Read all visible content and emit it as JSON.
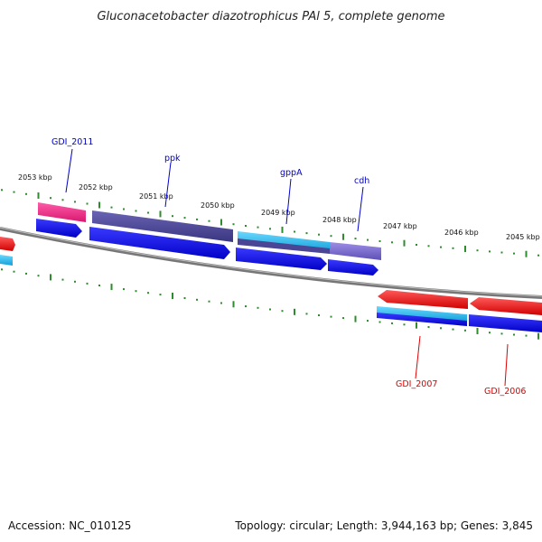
{
  "title": "Gluconacetobacter diazotrophicus PAl 5, complete genome",
  "footer": {
    "accession": "Accession: NC_010125",
    "summary": "Topology: circular; Length: 3,944,163 bp; Genes: 3,845"
  },
  "tick_labels": [
    "2053 kbp",
    "2052 kbp",
    "2051 kbp",
    "2050 kbp",
    "2049 kbp",
    "2048 kbp",
    "2047 kbp",
    "2046 kbp",
    "2045 kbp"
  ],
  "gene_labels": [
    {
      "text": "GDI_2011",
      "color": "#0000cc"
    },
    {
      "text": "ppk",
      "color": "#0000cc"
    },
    {
      "text": "gppA",
      "color": "#0000cc"
    },
    {
      "text": "cdh",
      "color": "#0000cc"
    },
    {
      "text": "GDI_2007",
      "color": "#dd0000"
    },
    {
      "text": "GDI_2006",
      "color": "#dd0000"
    }
  ],
  "colors": {
    "backbone": "#888888",
    "ticks": "#2e8b2e",
    "cds_blue": "#0a0ae6",
    "gene_magenta": "#ee2a8a",
    "gene_purple": "#4b4596",
    "gene_cyan": "#22b8e6",
    "gene_lavender": "#7a6ad0",
    "gene_red": "#ee0a0a"
  }
}
